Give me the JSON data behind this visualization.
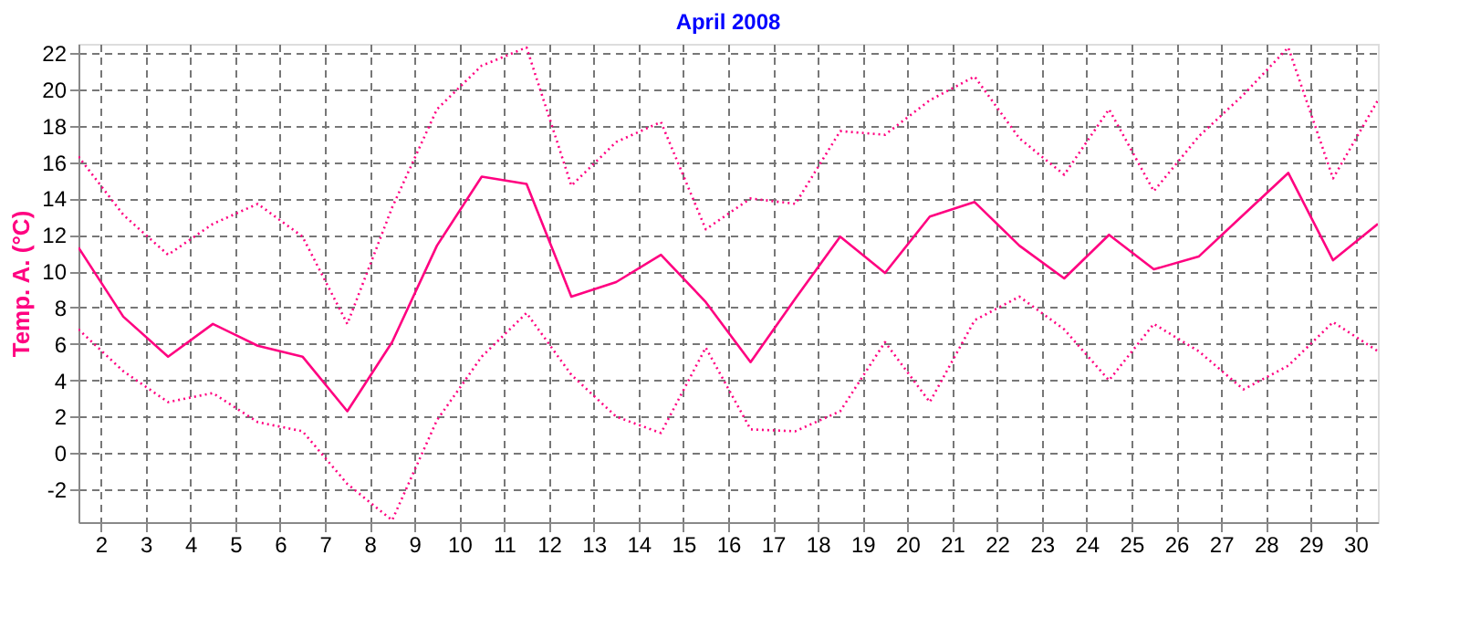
{
  "chart_data": {
    "type": "line",
    "title": "April 2008",
    "ylabel": "Temp. A. (°C)",
    "x": [
      1.5,
      2.5,
      3.5,
      4.5,
      5.5,
      6.5,
      7.5,
      8.5,
      9.5,
      10.5,
      11.5,
      12.5,
      13.5,
      14.5,
      15.5,
      16.5,
      17.5,
      18.5,
      19.5,
      20.5,
      21.5,
      22.5,
      23.5,
      24.5,
      25.5,
      26.5,
      27.5,
      28.5,
      29.5,
      30.5
    ],
    "series": [
      {
        "color": "#ff0080",
        "line_style": "dotted",
        "values": [
          16.3,
          13.1,
          10.9,
          12.6,
          13.7,
          11.9,
          7.1,
          13.5,
          18.9,
          21.3,
          22.3,
          14.7,
          17.1,
          18.2,
          12.3,
          14.0,
          13.7,
          17.7,
          17.5,
          19.4,
          20.7,
          17.3,
          15.3,
          18.9,
          14.4,
          17.4,
          19.7,
          22.3,
          15.1,
          19.4
        ]
      },
      {
        "color": "#ff0080",
        "line_style": "solid",
        "values": [
          11.3,
          7.5,
          5.3,
          7.1,
          5.9,
          5.3,
          2.3,
          6.1,
          11.4,
          15.2,
          14.8,
          8.6,
          9.4,
          10.9,
          8.3,
          5.0,
          8.5,
          11.9,
          9.9,
          13.0,
          13.8,
          11.4,
          9.6,
          12.0,
          10.1,
          10.8,
          13.1,
          15.4,
          10.6,
          12.6
        ]
      },
      {
        "color": "#ff0080",
        "line_style": "dotted",
        "values": [
          6.8,
          4.5,
          2.8,
          3.3,
          1.7,
          1.2,
          -1.7,
          -3.7,
          1.8,
          5.3,
          7.7,
          4.3,
          2.0,
          1.1,
          5.8,
          1.3,
          1.2,
          2.3,
          6.1,
          2.8,
          7.3,
          8.6,
          6.8,
          4.0,
          7.1,
          5.6,
          3.5,
          4.8,
          7.2,
          5.6
        ]
      }
    ],
    "xlim": [
      1.5,
      30.5
    ],
    "xticks": [
      2,
      3,
      4,
      5,
      6,
      7,
      8,
      9,
      10,
      11,
      12,
      13,
      14,
      15,
      16,
      17,
      18,
      19,
      20,
      21,
      22,
      23,
      24,
      25,
      26,
      27,
      28,
      29,
      30
    ],
    "ylim": [
      -3.8,
      22.5
    ],
    "yticks": [
      -2,
      0,
      2,
      4,
      6,
      8,
      10,
      12,
      14,
      16,
      18,
      20,
      22
    ],
    "grid": true,
    "marker": "none"
  }
}
